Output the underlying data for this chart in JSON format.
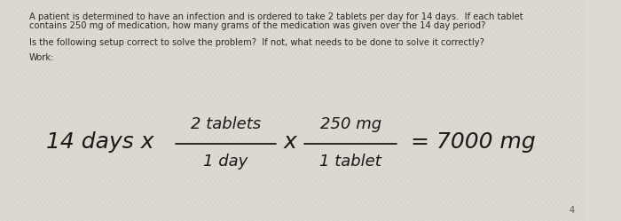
{
  "bg_color_light": "#dedad2",
  "bg_color_dark": "#ccc8c0",
  "text_color": "#2a2a2a",
  "hw_color": "#1a1a1a",
  "paragraph1_line1": "A patient is determined to have an infection and is ordered to take 2 tablets per day for 14 days.  If each tablet",
  "paragraph1_line2": "contains 250 mg of medication, how many grams of the medication was given over the 14 day period?",
  "paragraph2": "Is the following setup correct to solve the problem?  If not, what needs to be done to solve it correctly?",
  "paragraph3": "Work:",
  "typed_fontsize": 7.2,
  "hw_fontsize": 18,
  "hw_small": 13,
  "figsize": [
    7.0,
    2.49
  ],
  "dpi": 100
}
